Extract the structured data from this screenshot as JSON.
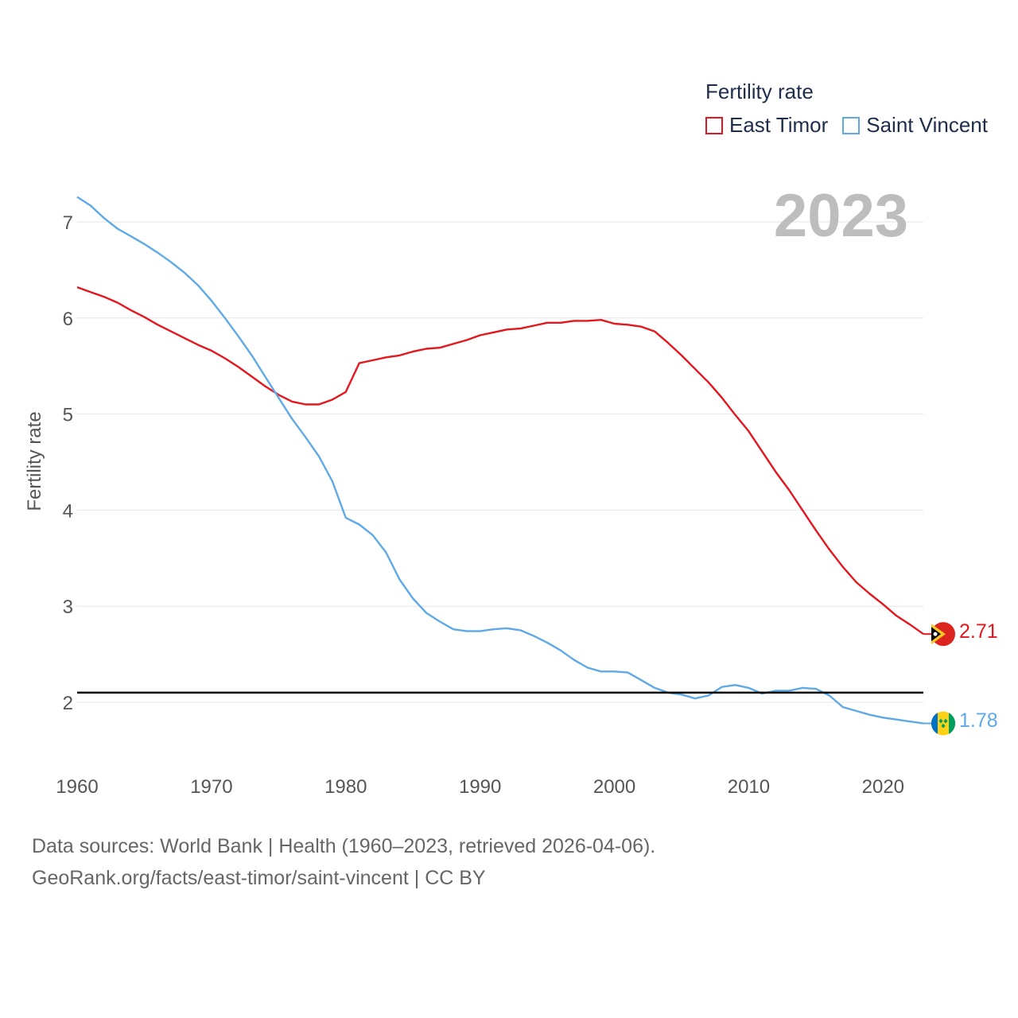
{
  "legend": {
    "title": "Fertility rate",
    "items": [
      {
        "name": "East Timor",
        "color": "#e3171d"
      },
      {
        "name": "Saint Vincent",
        "color": "#5ea9e6"
      }
    ]
  },
  "year_display": "2023",
  "source": {
    "line1": "Data sources: World Bank | Health (1960–2023, retrieved 2026-04-06).",
    "line2": "GeoRank.org/facts/east-timor/saint-vincent | CC BY"
  },
  "end_labels": {
    "east_timor": "2.71",
    "saint_vincent": "1.78"
  },
  "chart_data": {
    "type": "line",
    "title": "",
    "xlabel": "",
    "ylabel": "Fertility rate",
    "xlim": [
      1960,
      2023
    ],
    "ylim": [
      1.5,
      7.5
    ],
    "x_ticks": [
      1960,
      1970,
      1980,
      1990,
      2000,
      2010,
      2020
    ],
    "y_ticks": [
      2,
      3,
      4,
      5,
      6,
      7
    ],
    "reference_line": 2.1,
    "x": [
      1960,
      1961,
      1962,
      1963,
      1964,
      1965,
      1966,
      1967,
      1968,
      1969,
      1970,
      1971,
      1972,
      1973,
      1974,
      1975,
      1976,
      1977,
      1978,
      1979,
      1980,
      1981,
      1982,
      1983,
      1984,
      1985,
      1986,
      1987,
      1988,
      1989,
      1990,
      1991,
      1992,
      1993,
      1994,
      1995,
      1996,
      1997,
      1998,
      1999,
      2000,
      2001,
      2002,
      2003,
      2004,
      2005,
      2006,
      2007,
      2008,
      2009,
      2010,
      2011,
      2012,
      2013,
      2014,
      2015,
      2016,
      2017,
      2018,
      2019,
      2020,
      2021,
      2022,
      2023
    ],
    "series": [
      {
        "name": "East Timor",
        "color": "#e3171d",
        "values": [
          6.32,
          6.27,
          6.22,
          6.16,
          6.08,
          6.01,
          5.93,
          5.86,
          5.79,
          5.72,
          5.66,
          5.58,
          5.49,
          5.39,
          5.29,
          5.2,
          5.13,
          5.1,
          5.1,
          5.15,
          5.23,
          5.53,
          5.56,
          5.59,
          5.61,
          5.65,
          5.68,
          5.69,
          5.73,
          5.77,
          5.82,
          5.85,
          5.88,
          5.89,
          5.92,
          5.95,
          5.95,
          5.97,
          5.97,
          5.98,
          5.94,
          5.93,
          5.91,
          5.86,
          5.74,
          5.61,
          5.47,
          5.33,
          5.17,
          4.99,
          4.82,
          4.61,
          4.4,
          4.21,
          4.0,
          3.79,
          3.59,
          3.41,
          3.25,
          3.13,
          3.02,
          2.9,
          2.81,
          2.71
        ]
      },
      {
        "name": "Saint Vincent",
        "color": "#5ea9e6",
        "values": [
          7.26,
          7.17,
          7.04,
          6.93,
          6.85,
          6.77,
          6.68,
          6.58,
          6.47,
          6.34,
          6.18,
          6.0,
          5.81,
          5.61,
          5.39,
          5.17,
          4.95,
          4.76,
          4.56,
          4.3,
          3.92,
          3.85,
          3.74,
          3.56,
          3.28,
          3.08,
          2.93,
          2.84,
          2.76,
          2.74,
          2.74,
          2.76,
          2.77,
          2.75,
          2.69,
          2.62,
          2.54,
          2.44,
          2.36,
          2.32,
          2.32,
          2.31,
          2.23,
          2.15,
          2.1,
          2.08,
          2.04,
          2.07,
          2.16,
          2.18,
          2.15,
          2.09,
          2.12,
          2.12,
          2.15,
          2.14,
          2.07,
          1.95,
          1.91,
          1.87,
          1.84,
          1.82,
          1.8,
          1.78
        ]
      }
    ]
  }
}
